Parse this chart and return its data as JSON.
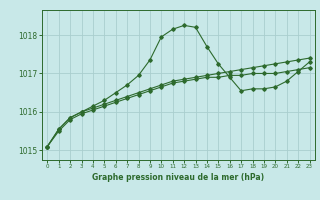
{
  "x": [
    0,
    1,
    2,
    3,
    4,
    5,
    6,
    7,
    8,
    9,
    10,
    11,
    12,
    13,
    14,
    15,
    16,
    17,
    18,
    19,
    20,
    21,
    22,
    23
  ],
  "line1": [
    1015.1,
    1015.55,
    1015.85,
    1016.0,
    1016.15,
    1016.3,
    1016.5,
    1016.7,
    1016.95,
    1017.35,
    1017.95,
    1018.15,
    1018.25,
    1018.2,
    1017.7,
    1017.25,
    1016.9,
    1016.55,
    1016.6,
    1016.6,
    1016.65,
    1016.8,
    1017.05,
    1017.3
  ],
  "line2": [
    1015.1,
    1015.55,
    1015.85,
    1016.0,
    1016.1,
    1016.2,
    1016.3,
    1016.4,
    1016.5,
    1016.6,
    1016.7,
    1016.8,
    1016.85,
    1016.9,
    1016.95,
    1017.0,
    1017.05,
    1017.1,
    1017.15,
    1017.2,
    1017.25,
    1017.3,
    1017.35,
    1017.4
  ],
  "line3": [
    1015.1,
    1015.5,
    1015.8,
    1015.95,
    1016.05,
    1016.15,
    1016.25,
    1016.35,
    1016.45,
    1016.55,
    1016.65,
    1016.75,
    1016.8,
    1016.85,
    1016.9,
    1016.9,
    1016.95,
    1016.95,
    1017.0,
    1017.0,
    1017.0,
    1017.05,
    1017.1,
    1017.15
  ],
  "line_color": "#2d6a2d",
  "bg_color": "#c8e8e8",
  "grid_color": "#aacece",
  "title": "Graphe pression niveau de la mer (hPa)",
  "ylim": [
    1014.75,
    1018.65
  ],
  "yticks": [
    1015,
    1016,
    1017,
    1018
  ],
  "xlim": [
    -0.5,
    23.5
  ]
}
